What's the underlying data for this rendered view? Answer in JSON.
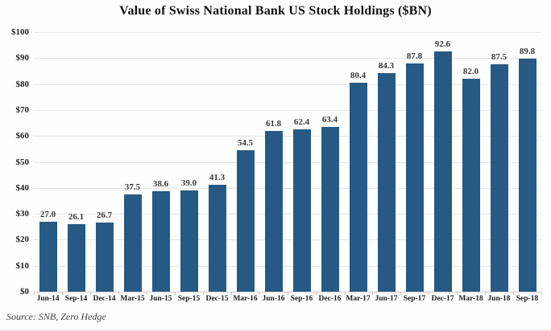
{
  "chart_data": {
    "type": "bar",
    "title": "Value of Swiss National Bank US Stock Holdings ($BN)",
    "categories": [
      "Jun-14",
      "Sep-14",
      "Dec-14",
      "Mar-15",
      "Jun-15",
      "Sep-15",
      "Dec-15",
      "Mar-16",
      "Jun-16",
      "Sep-16",
      "Dec-16",
      "Mar-17",
      "Jun-17",
      "Sep-17",
      "Dec-17",
      "Mar-18",
      "Jun-18",
      "Sep-18"
    ],
    "values": [
      27.0,
      26.1,
      26.7,
      37.5,
      38.6,
      39.0,
      41.3,
      54.5,
      61.8,
      62.4,
      63.4,
      80.4,
      84.3,
      87.8,
      92.6,
      82.0,
      87.5,
      89.8
    ],
    "value_labels": [
      "27.0",
      "26.1",
      "26.7",
      "37.5",
      "38.6",
      "39.0",
      "41.3",
      "54.5",
      "61.8",
      "62.4",
      "63.4",
      "80.4",
      "84.3",
      "87.8",
      "92.6",
      "82.0",
      "87.5",
      "89.8"
    ],
    "xlabel": "",
    "ylabel": "",
    "ylim": [
      0,
      100
    ],
    "ytick_step": 10,
    "ytick_labels": [
      "$0",
      "$10",
      "$20",
      "$30",
      "$40",
      "$50",
      "$60",
      "$70",
      "$80",
      "$90",
      "$100"
    ],
    "grid": true,
    "legend": "none",
    "bar_color": "#265a84",
    "source_note": "Source: SNB, Zero Hedge"
  }
}
